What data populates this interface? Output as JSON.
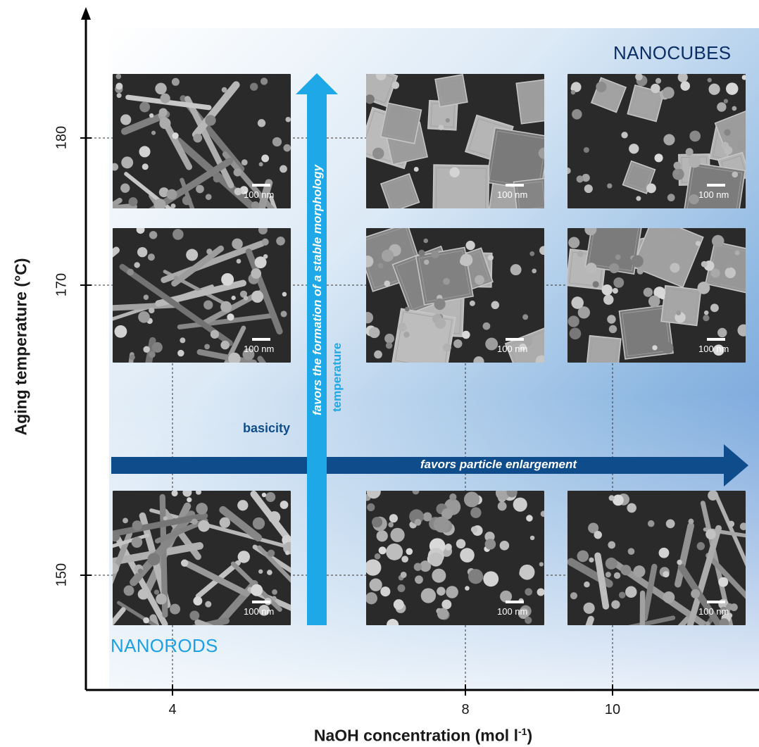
{
  "axes": {
    "x_label": "NaOH concentration (mol l",
    "x_label_sup": "-1",
    "x_label_end": ")",
    "y_label": "Aging temperature (°C)",
    "x_ticks": [
      "4",
      "8",
      "10"
    ],
    "y_ticks": [
      "180",
      "170",
      "150"
    ]
  },
  "regions": {
    "top_right": "NANOCUBES",
    "bottom_left": "NANORODS"
  },
  "arrows": {
    "horizontal_label": "basicity",
    "horizontal_note": "favors particle enlargement",
    "vertical_label": "temperature",
    "vertical_note": "favors the formation of a stable morphology"
  },
  "scale_label": "100 nm",
  "colors": {
    "dark_blue": "#0f4c8c",
    "light_blue": "#1ea8e8",
    "nanocubes_text": "#0b2e66",
    "nanorods_text": "#1ea0e6"
  },
  "micrographs": [
    {
      "naoh": "4",
      "temp": "180",
      "morphology": "rods-mixed"
    },
    {
      "naoh": "8",
      "temp": "180",
      "morphology": "cubes"
    },
    {
      "naoh": "10",
      "temp": "180",
      "morphology": "cubes-mixed"
    },
    {
      "naoh": "4",
      "temp": "170",
      "morphology": "rods-mixed"
    },
    {
      "naoh": "8",
      "temp": "170",
      "morphology": "cubes-mixed"
    },
    {
      "naoh": "10",
      "temp": "170",
      "morphology": "cubes-mixed"
    },
    {
      "naoh": "4",
      "temp": "150",
      "morphology": "rods"
    },
    {
      "naoh": "8",
      "temp": "150",
      "morphology": "particles"
    },
    {
      "naoh": "10",
      "temp": "150",
      "morphology": "rods-mixed"
    }
  ]
}
